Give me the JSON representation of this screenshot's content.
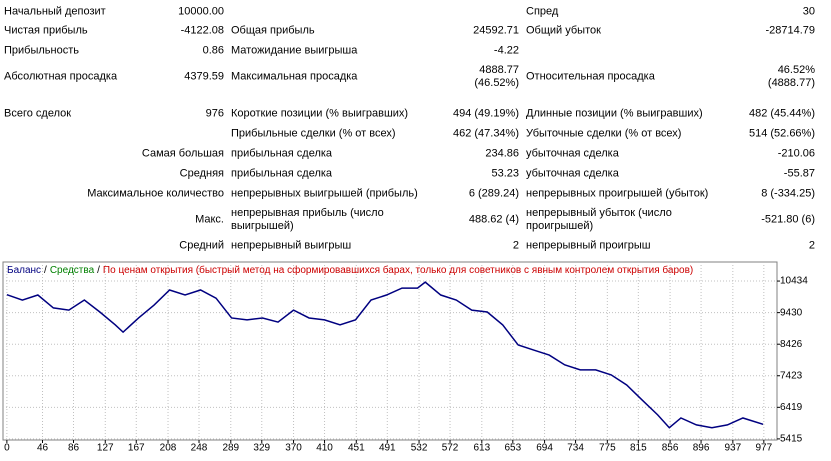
{
  "report": {
    "rows": [
      {
        "a_label": "Начальный депозит",
        "a_value": "10000.00",
        "c_label": "Спред",
        "c_value": "30"
      },
      {
        "a_label": "Чистая прибыль",
        "a_value": "-4122.08",
        "b_label": "Общая прибыль",
        "b_value": "24592.71",
        "c_label": "Общий убыток",
        "c_value": "-28714.79"
      },
      {
        "a_label": "Прибыльность",
        "a_value": "0.86",
        "b_label": "Матожидание выигрыша",
        "b_value": "-4.22"
      },
      {
        "a_label": "Абсолютная просадка",
        "a_value": "4379.59",
        "b_label": "Максимальная просадка",
        "b_value": "4888.77\n(46.52%)",
        "c_label": "Относительная просадка",
        "c_value": "46.52%\n(4888.77)"
      },
      {
        "a_label": "Всего сделок",
        "a_value": "976",
        "b_label": "Короткие позиции (% выигравших)",
        "b_value": "494 (49.19%)",
        "c_label": "Длинные позиции (% выигравших)",
        "c_value": "482 (45.44%)"
      },
      {
        "b_label": "Прибыльные сделки (% от всех)",
        "b_value": "462 (47.34%)",
        "c_label": "Убыточные сделки (% от всех)",
        "c_value": "514 (52.66%)"
      },
      {
        "heading": "Самая большая",
        "b_label": "прибыльная сделка",
        "b_value": "234.86",
        "c_label": "убыточная сделка",
        "c_value": "-210.06"
      },
      {
        "heading": "Средняя",
        "b_label": "прибыльная сделка",
        "b_value": "53.23",
        "c_label": "убыточная сделка",
        "c_value": "-55.87"
      },
      {
        "heading": "Максимальное количество",
        "b_label": "непрерывных выигрышей (прибыль)",
        "b_value": "6 (289.24)",
        "c_label": "непрерывных проигрышей (убыток)",
        "c_value": "8 (-334.25)"
      },
      {
        "heading": "Макс.",
        "b_label": "непрерывная прибыль (число\nвыигрышей)",
        "b_value": "488.62 (4)",
        "c_label": "непрерывный убыток (число\nпроигрышей)",
        "c_value": "-521.80 (6)"
      },
      {
        "heading": "Средний",
        "b_label": "непрерывный выигрыш",
        "b_value": "2",
        "c_label": "непрерывный проигрыш",
        "c_value": "2"
      }
    ]
  },
  "chart_data": {
    "type": "line",
    "legend_items": [
      "Баланс",
      "/",
      "Средства",
      "/",
      "По ценам открытия (быстрый метод на сформировавшихся барах, только для советников с явным контролем открытия баров)"
    ],
    "legend_colors": [
      "#000080",
      "#000000",
      "#008000",
      "#000000",
      "#cc0000"
    ],
    "x": [
      0,
      20,
      40,
      60,
      80,
      100,
      120,
      140,
      150,
      170,
      190,
      210,
      230,
      250,
      270,
      290,
      310,
      330,
      350,
      370,
      390,
      410,
      430,
      450,
      470,
      490,
      510,
      530,
      540,
      560,
      580,
      600,
      620,
      640,
      660,
      680,
      700,
      720,
      740,
      760,
      780,
      800,
      820,
      840,
      855,
      870,
      890,
      910,
      930,
      950,
      976
    ],
    "series": [
      {
        "color": "#000080",
        "values": [
          10000,
          9830,
          9990,
          9580,
          9510,
          9830,
          9450,
          9040,
          8810,
          9260,
          9670,
          10150,
          9990,
          10150,
          9890,
          9260,
          9200,
          9260,
          9130,
          9510,
          9260,
          9200,
          9040,
          9200,
          9830,
          9990,
          10210,
          10210,
          10400,
          9990,
          9830,
          9510,
          9450,
          9040,
          8400,
          8240,
          8080,
          7770,
          7610,
          7610,
          7450,
          7130,
          6650,
          6180,
          5770,
          6080,
          5860,
          5770,
          5860,
          6080,
          5878
        ]
      }
    ],
    "xlim": [
      -5,
      994
    ],
    "ylim": [
      5380,
      11040
    ],
    "xticks": [
      0,
      46,
      86,
      127,
      167,
      208,
      248,
      289,
      329,
      370,
      410,
      451,
      491,
      532,
      572,
      613,
      653,
      694,
      734,
      775,
      815,
      856,
      896,
      937,
      977
    ],
    "yticks": [
      5415,
      6419,
      7423,
      8426,
      9430,
      10434
    ],
    "grid": true
  }
}
